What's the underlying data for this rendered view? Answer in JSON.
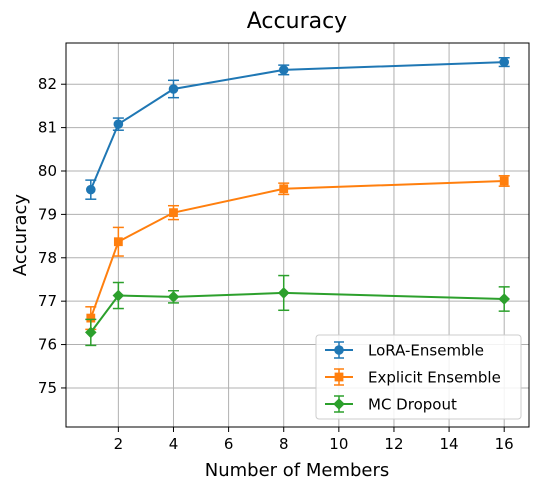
{
  "chart_data": {
    "type": "line",
    "title": "Accuracy",
    "xlabel": "Number of Members",
    "ylabel": "Accuracy",
    "xlim": [
      0.1,
      16.9
    ],
    "ylim": [
      74.1,
      82.95
    ],
    "xticks": [
      2,
      4,
      6,
      8,
      10,
      12,
      14,
      16
    ],
    "yticks": [
      75,
      76,
      77,
      78,
      79,
      80,
      81,
      82
    ],
    "grid": true,
    "legend_position": "lower-right",
    "x": [
      1,
      2,
      4,
      8,
      16
    ],
    "series": [
      {
        "name": "LoRA-Ensemble",
        "marker": "circle",
        "color": "#1f77b4",
        "values": [
          79.57,
          81.08,
          81.89,
          82.33,
          82.51
        ],
        "errors": [
          0.22,
          0.14,
          0.2,
          0.11,
          0.1
        ]
      },
      {
        "name": "Explicit Ensemble",
        "marker": "square",
        "color": "#ff7f0e",
        "values": [
          76.61,
          78.37,
          79.04,
          79.59,
          79.77
        ],
        "errors": [
          0.26,
          0.33,
          0.16,
          0.13,
          0.12
        ]
      },
      {
        "name": "MC Dropout",
        "marker": "diamond",
        "color": "#2ca02c",
        "values": [
          76.28,
          77.13,
          77.1,
          77.19,
          77.05
        ],
        "errors": [
          0.3,
          0.3,
          0.14,
          0.4,
          0.28
        ]
      }
    ]
  }
}
